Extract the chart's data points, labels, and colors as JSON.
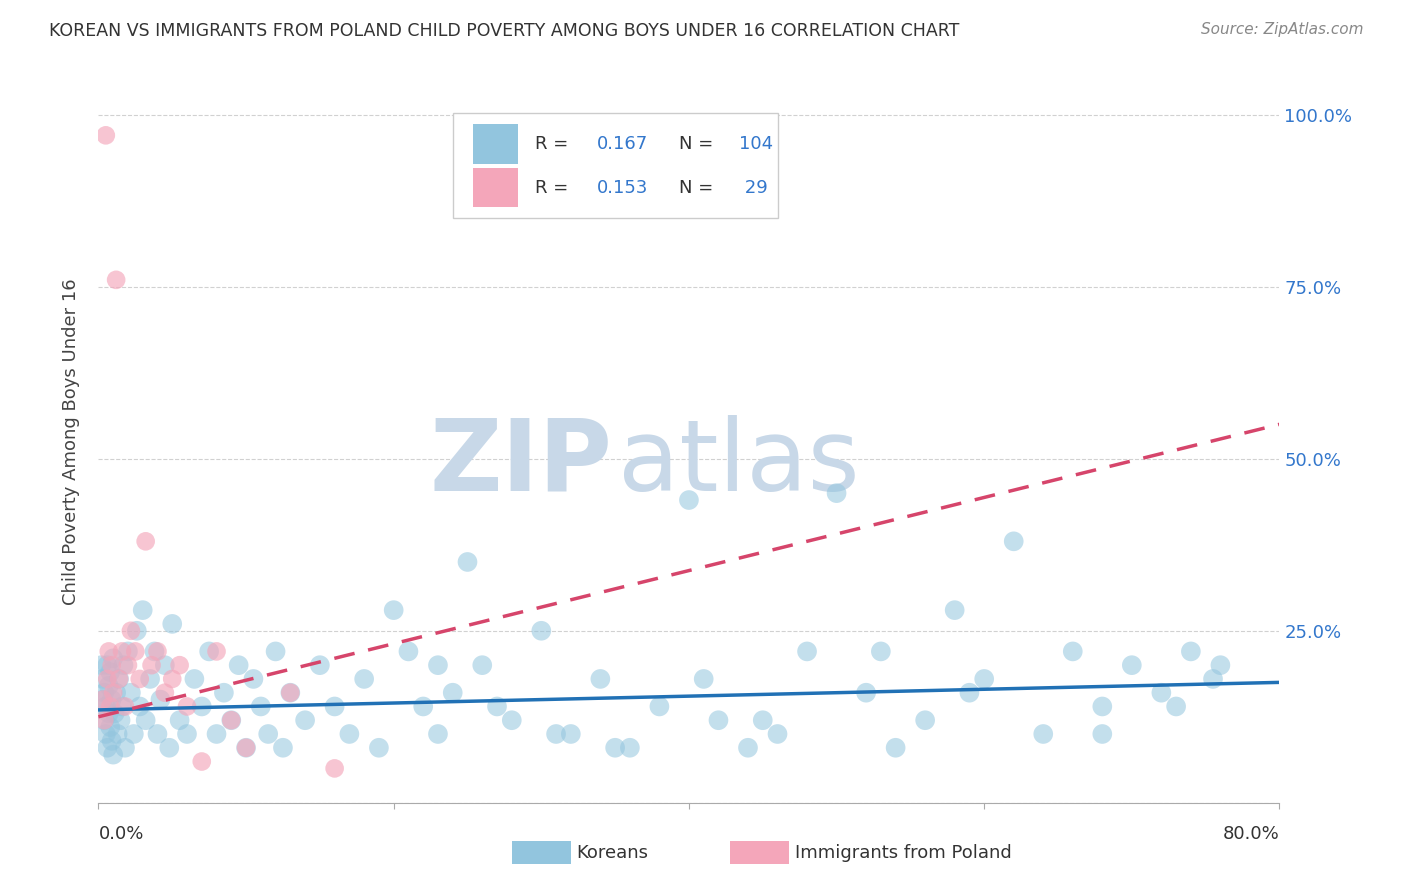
{
  "title": "KOREAN VS IMMIGRANTS FROM POLAND CHILD POVERTY AMONG BOYS UNDER 16 CORRELATION CHART",
  "source": "Source: ZipAtlas.com",
  "ylabel": "Child Poverty Among Boys Under 16",
  "xmin": 0.0,
  "xmax": 0.8,
  "ymin": 0.0,
  "ymax": 1.05,
  "ytick_values": [
    0.0,
    0.25,
    0.5,
    0.75,
    1.0
  ],
  "ytick_labels_right": [
    "",
    "25.0%",
    "50.0%",
    "75.0%",
    "100.0%"
  ],
  "korean_R": 0.167,
  "korean_N": 104,
  "poland_R": 0.153,
  "poland_N": 29,
  "blue_color": "#92c5de",
  "pink_color": "#f4a6ba",
  "blue_line_color": "#2171b5",
  "pink_line_color": "#d6456b",
  "watermark_zip_color": "#c8d8e8",
  "watermark_atlas_color": "#c8d8e8",
  "legend_text_color": "#3377cc",
  "title_color": "#333333",
  "grid_color": "#cccccc",
  "background_color": "#ffffff",
  "korean_x": [
    0.002,
    0.003,
    0.003,
    0.004,
    0.004,
    0.005,
    0.005,
    0.006,
    0.006,
    0.007,
    0.007,
    0.008,
    0.008,
    0.009,
    0.009,
    0.01,
    0.01,
    0.011,
    0.012,
    0.013,
    0.014,
    0.015,
    0.016,
    0.017,
    0.018,
    0.02,
    0.022,
    0.024,
    0.026,
    0.028,
    0.03,
    0.032,
    0.035,
    0.038,
    0.04,
    0.042,
    0.045,
    0.048,
    0.05,
    0.055,
    0.06,
    0.065,
    0.07,
    0.075,
    0.08,
    0.085,
    0.09,
    0.095,
    0.1,
    0.105,
    0.11,
    0.115,
    0.12,
    0.125,
    0.13,
    0.14,
    0.15,
    0.16,
    0.17,
    0.18,
    0.19,
    0.2,
    0.21,
    0.22,
    0.23,
    0.24,
    0.25,
    0.26,
    0.28,
    0.3,
    0.32,
    0.34,
    0.36,
    0.38,
    0.4,
    0.42,
    0.44,
    0.46,
    0.48,
    0.5,
    0.52,
    0.54,
    0.56,
    0.58,
    0.6,
    0.62,
    0.64,
    0.66,
    0.68,
    0.7,
    0.72,
    0.74,
    0.755,
    0.76,
    0.73,
    0.68,
    0.59,
    0.53,
    0.45,
    0.41,
    0.35,
    0.31,
    0.27,
    0.23
  ],
  "korean_y": [
    0.2,
    0.15,
    0.18,
    0.12,
    0.16,
    0.1,
    0.14,
    0.08,
    0.2,
    0.13,
    0.17,
    0.11,
    0.19,
    0.09,
    0.15,
    0.07,
    0.21,
    0.13,
    0.16,
    0.1,
    0.18,
    0.12,
    0.14,
    0.2,
    0.08,
    0.22,
    0.16,
    0.1,
    0.25,
    0.14,
    0.28,
    0.12,
    0.18,
    0.22,
    0.1,
    0.15,
    0.2,
    0.08,
    0.26,
    0.12,
    0.1,
    0.18,
    0.14,
    0.22,
    0.1,
    0.16,
    0.12,
    0.2,
    0.08,
    0.18,
    0.14,
    0.1,
    0.22,
    0.08,
    0.16,
    0.12,
    0.2,
    0.14,
    0.1,
    0.18,
    0.08,
    0.28,
    0.22,
    0.14,
    0.1,
    0.16,
    0.35,
    0.2,
    0.12,
    0.25,
    0.1,
    0.18,
    0.08,
    0.14,
    0.44,
    0.12,
    0.08,
    0.1,
    0.22,
    0.45,
    0.16,
    0.08,
    0.12,
    0.28,
    0.18,
    0.38,
    0.1,
    0.22,
    0.14,
    0.2,
    0.16,
    0.22,
    0.18,
    0.2,
    0.14,
    0.1,
    0.16,
    0.22,
    0.12,
    0.18,
    0.08,
    0.1,
    0.14,
    0.2
  ],
  "poland_x": [
    0.003,
    0.004,
    0.005,
    0.006,
    0.007,
    0.008,
    0.009,
    0.01,
    0.012,
    0.014,
    0.016,
    0.018,
    0.02,
    0.022,
    0.025,
    0.028,
    0.032,
    0.036,
    0.04,
    0.045,
    0.05,
    0.055,
    0.06,
    0.07,
    0.08,
    0.09,
    0.1,
    0.13,
    0.16
  ],
  "poland_y": [
    0.15,
    0.12,
    0.97,
    0.18,
    0.22,
    0.14,
    0.2,
    0.16,
    0.76,
    0.18,
    0.22,
    0.14,
    0.2,
    0.25,
    0.22,
    0.18,
    0.38,
    0.2,
    0.22,
    0.16,
    0.18,
    0.2,
    0.14,
    0.06,
    0.22,
    0.12,
    0.08,
    0.16,
    0.05
  ],
  "korean_trend_x": [
    0.0,
    0.8
  ],
  "korean_trend_y": [
    0.135,
    0.175
  ],
  "poland_trend_x": [
    0.0,
    0.8
  ],
  "poland_trend_y": [
    0.125,
    0.55
  ]
}
